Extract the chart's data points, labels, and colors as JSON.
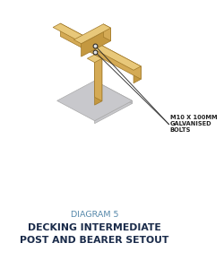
{
  "title_line1": "DIAGRAM 5",
  "title_line2": "DECKING INTERMEDIATE",
  "title_line3": "POST AND BEARER SETOUT",
  "bolt_label": "M10 X 100MM\nGALVANISED\nBOLTS",
  "wood_top_color": "#E8C87A",
  "wood_side1_color": "#D4AA55",
  "wood_side2_color": "#C49840",
  "wood_edge_color": "#A07828",
  "base_color": "#C8C8CC",
  "base_edge_color": "#AAAAAA",
  "bg_color": "#FFFFFF",
  "title_color1": "#5588AA",
  "title_color2": "#1A2B4A",
  "bolt_color": "#222222",
  "bolt_fill": "#E0E0E0"
}
